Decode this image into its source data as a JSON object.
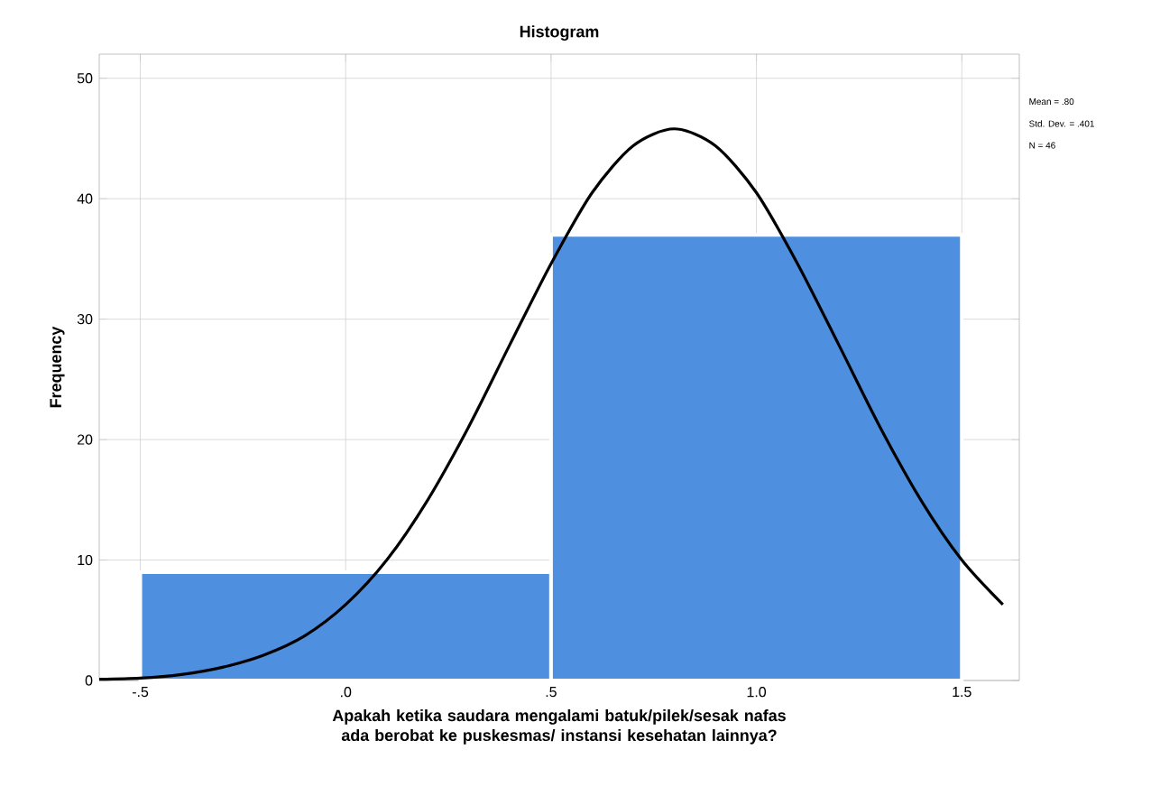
{
  "chart_data": {
    "type": "histogram",
    "title": "Histogram",
    "xlabel": "Apakah ketika saudara mengalami batuk/pilek/sesak nafas ada berobat ke puskesmas/ instansi kesehatan lainnya?",
    "ylabel": "Frequency",
    "annotations": [
      "Mean = .80",
      "Std. Dev. = .401",
      "N = 46"
    ],
    "bins": [
      -0.5,
      0.5,
      1.5
    ],
    "values": [
      9,
      37
    ],
    "color": "#4f8fe0",
    "series": [
      {
        "type": "line",
        "color": "#000000",
        "x": [
          -0.6,
          -0.5,
          -0.4,
          -0.3,
          -0.2,
          -0.1,
          0,
          0.1,
          0.2,
          0.3,
          0.4,
          0.5,
          0.6,
          0.7,
          0.8,
          0.9,
          1.0,
          1.1,
          1.2,
          1.3,
          1.4,
          1.5,
          1.6
        ],
        "values": [
          0.1,
          0.2,
          0.5,
          1.1,
          2.1,
          3.7,
          6.3,
          10.0,
          15.0,
          21.1,
          27.9,
          34.6,
          40.5,
          44.4,
          45.8,
          44.4,
          40.5,
          34.6,
          27.9,
          21.1,
          15.0,
          10.0,
          6.3
        ]
      }
    ],
    "xlim": [
      -0.6,
      1.64
    ],
    "ylim": [
      0,
      52
    ],
    "xticks": [
      {
        "value": -0.5,
        "label": "-.5"
      },
      {
        "value": 0,
        "label": ".0"
      },
      {
        "value": 0.5,
        "label": ".5"
      },
      {
        "value": 1.0,
        "label": "1.0"
      },
      {
        "value": 1.5,
        "label": "1.5"
      }
    ],
    "yticks": [
      0,
      10,
      20,
      30,
      40,
      50
    ],
    "grid": true
  }
}
